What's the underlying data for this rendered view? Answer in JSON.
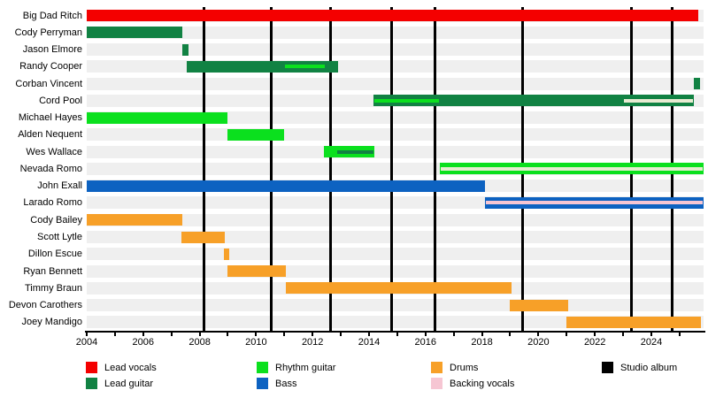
{
  "chart_data": {
    "type": "timeline-gantt",
    "title": "",
    "x_axis": {
      "min": 2004,
      "max": 2025.85,
      "label_ticks": [
        2004,
        2006,
        2008,
        2010,
        2012,
        2014,
        2016,
        2018,
        2020,
        2022,
        2024
      ],
      "minor_tick_step": 1
    },
    "roles": {
      "lead_vocals": {
        "label": "Lead vocals",
        "color": "#f40000"
      },
      "lead_guitar": {
        "label": "Lead guitar",
        "color": "#118243"
      },
      "rhythm_guitar": {
        "label": "Rhythm guitar",
        "color": "#0be01e"
      },
      "bass": {
        "label": "Bass",
        "color": "#0d62c1"
      },
      "drums": {
        "label": "Drums",
        "color": "#f7a028"
      },
      "backing_vocals": {
        "label": "Backing vocals",
        "color": "#f6c6d3"
      },
      "studio_album": {
        "label": "Studio album",
        "color": "#000000"
      }
    },
    "members": [
      {
        "name": "Big Dad Ritch",
        "bars": [
          {
            "role": "lead_vocals",
            "start": 2004,
            "end": 2025.65
          }
        ]
      },
      {
        "name": "Cody Perryman",
        "bars": [
          {
            "role": "lead_guitar",
            "start": 2004,
            "end": 2007.4
          }
        ]
      },
      {
        "name": "Jason Elmore",
        "bars": [
          {
            "role": "lead_guitar",
            "start": 2007.4,
            "end": 2007.6
          }
        ]
      },
      {
        "name": "Randy Cooper",
        "bars": [
          {
            "role": "lead_guitar",
            "start": 2007.55,
            "end": 2012.9,
            "stripes": [
              {
                "role": "rhythm_guitar",
                "start": 2011.0,
                "end": 2012.45
              }
            ]
          }
        ]
      },
      {
        "name": "Corban Vincent",
        "bars": [
          {
            "role": "lead_guitar",
            "start": 2025.5,
            "end": 2025.72
          }
        ]
      },
      {
        "name": "Cord Pool",
        "bars": [
          {
            "role": "lead_guitar",
            "start": 2014.15,
            "end": 2025.5,
            "stripes": [
              {
                "role": "rhythm_guitar",
                "start": 2014.15,
                "end": 2016.5
              },
              {
                "role": "backing_vocals",
                "start": 2023.0,
                "end": 2025.5,
                "tint": "#e8ebd2"
              }
            ]
          }
        ]
      },
      {
        "name": "Michael Hayes",
        "bars": [
          {
            "role": "rhythm_guitar",
            "start": 2004,
            "end": 2009.0
          }
        ]
      },
      {
        "name": "Alden Nequent",
        "bars": [
          {
            "role": "rhythm_guitar",
            "start": 2009.0,
            "end": 2011.0
          }
        ]
      },
      {
        "name": "Wes Wallace",
        "bars": [
          {
            "role": "rhythm_guitar",
            "start": 2012.4,
            "end": 2014.2,
            "stripes": [
              {
                "role": "lead_guitar",
                "start": 2012.85,
                "end": 2014.2
              }
            ]
          }
        ]
      },
      {
        "name": "Nevada Romo",
        "bars": [
          {
            "role": "rhythm_guitar",
            "start": 2016.5,
            "end": 2025.85,
            "stripes": [
              {
                "role": "backing_vocals",
                "start": 2016.5,
                "end": 2025.85,
                "tint": "#e6ecd0"
              }
            ]
          }
        ]
      },
      {
        "name": "John Exall",
        "bars": [
          {
            "role": "bass",
            "start": 2004,
            "end": 2018.1
          }
        ]
      },
      {
        "name": "Larado Romo",
        "bars": [
          {
            "role": "bass",
            "start": 2018.1,
            "end": 2025.85,
            "stripes": [
              {
                "role": "backing_vocals",
                "start": 2018.1,
                "end": 2025.85
              }
            ]
          }
        ]
      },
      {
        "name": "Cody Bailey",
        "bars": [
          {
            "role": "drums",
            "start": 2004,
            "end": 2007.4
          }
        ]
      },
      {
        "name": "Scott Lytle",
        "bars": [
          {
            "role": "drums",
            "start": 2007.35,
            "end": 2008.9
          }
        ]
      },
      {
        "name": "Dillon Escue",
        "bars": [
          {
            "role": "drums",
            "start": 2008.85,
            "end": 2009.05
          }
        ]
      },
      {
        "name": "Ryan Bennett",
        "bars": [
          {
            "role": "drums",
            "start": 2009.0,
            "end": 2011.05
          }
        ]
      },
      {
        "name": "Timmy Braun",
        "bars": [
          {
            "role": "drums",
            "start": 2011.05,
            "end": 2019.05
          }
        ]
      },
      {
        "name": "Devon Carothers",
        "bars": [
          {
            "role": "drums",
            "start": 2019.0,
            "end": 2021.05
          }
        ]
      },
      {
        "name": "Joey Mandigo",
        "bars": [
          {
            "role": "drums",
            "start": 2021.0,
            "end": 2025.75
          }
        ]
      }
    ],
    "album_release_lines": [
      2008.15,
      2010.55,
      2012.65,
      2014.8,
      2016.35,
      2019.45,
      2023.3,
      2024.75
    ],
    "legend": [
      {
        "label": "Lead vocals",
        "role": "lead_vocals",
        "col": 0,
        "row": 0
      },
      {
        "label": "Lead guitar",
        "role": "lead_guitar",
        "col": 0,
        "row": 1
      },
      {
        "label": "Rhythm guitar",
        "role": "rhythm_guitar",
        "col": 1,
        "row": 0
      },
      {
        "label": "Bass",
        "role": "bass",
        "col": 1,
        "row": 1
      },
      {
        "label": "Drums",
        "role": "drums",
        "col": 2,
        "row": 0
      },
      {
        "label": "Backing vocals",
        "role": "backing_vocals",
        "col": 2,
        "row": 1
      },
      {
        "label": "Studio album",
        "role": "studio_album",
        "col": 3,
        "row": 0
      }
    ]
  }
}
